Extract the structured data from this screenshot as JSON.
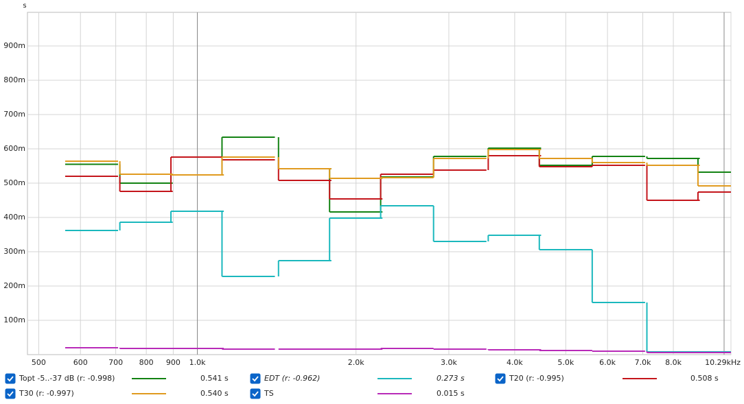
{
  "chart_data": {
    "type": "step",
    "y_unit": "s",
    "x": [
      630,
      800,
      1000,
      1250,
      1600,
      2000,
      2500,
      3150,
      4000,
      5000,
      6300,
      8000,
      10000
    ],
    "series": [
      {
        "name": "Topt -5..-37 dB (r: -0.998)",
        "color": "#128212",
        "summary": "0.541 s",
        "checked": true,
        "italic": false,
        "values": [
          0.555,
          0.5,
          0.524,
          0.634,
          0.542,
          0.416,
          0.518,
          0.578,
          0.602,
          0.552,
          0.578,
          0.572,
          0.532
        ]
      },
      {
        "name": "EDT (r: -0.962)",
        "color": "#1ab8bd",
        "summary": "0.273 s",
        "checked": true,
        "italic": true,
        "values": [
          0.362,
          0.386,
          0.418,
          0.228,
          0.274,
          0.398,
          0.434,
          0.33,
          0.348,
          0.306,
          0.152,
          0.008,
          0.008
        ]
      },
      {
        "name": "T20 (r: -0.995)",
        "color": "#c4141a",
        "summary": "0.508 s",
        "checked": true,
        "italic": false,
        "values": [
          0.52,
          0.476,
          0.576,
          0.568,
          0.508,
          0.454,
          0.526,
          0.538,
          0.58,
          0.548,
          0.552,
          0.45,
          0.474
        ]
      },
      {
        "name": "T30 (r: -0.997)",
        "color": "#e09a1e",
        "summary": "0.540 s",
        "checked": true,
        "italic": false,
        "values": [
          0.564,
          0.526,
          0.524,
          0.576,
          0.542,
          0.514,
          0.516,
          0.572,
          0.598,
          0.572,
          0.56,
          0.552,
          0.492
        ]
      },
      {
        "name": "TS",
        "color": "#b82ab8",
        "summary": "0.015 s",
        "checked": true,
        "italic": false,
        "values": [
          0.02,
          0.018,
          0.018,
          0.016,
          0.016,
          0.016,
          0.018,
          0.016,
          0.014,
          0.012,
          0.01,
          0.006,
          0.006
        ]
      }
    ],
    "xscale": "log",
    "xlim": [
      476,
      10290
    ],
    "xticks": [
      500,
      600,
      700,
      800,
      900,
      {
        "value": 1000,
        "label": "1.0k"
      },
      {
        "value": 2000,
        "label": "2.0k"
      },
      {
        "value": 3000,
        "label": "3.0k"
      },
      {
        "value": 4000,
        "label": "4.0k"
      },
      {
        "value": 5000,
        "label": "5.0k"
      },
      {
        "value": 6000,
        "label": "6.0k"
      },
      {
        "value": 7000,
        "label": "7.0k"
      },
      {
        "value": 8000,
        "label": "8.0k"
      },
      {
        "value": 10290,
        "label": "10.29kHz"
      }
    ],
    "ylim": [
      0,
      0.998
    ],
    "yticks": [
      {
        "value": 0.1,
        "label": "100m"
      },
      {
        "value": 0.2,
        "label": "200m"
      },
      {
        "value": 0.3,
        "label": "300m"
      },
      {
        "value": 0.4,
        "label": "400m"
      },
      {
        "value": 0.5,
        "label": "500m"
      },
      {
        "value": 0.6,
        "label": "600m"
      },
      {
        "value": 0.7,
        "label": "700m"
      },
      {
        "value": 0.8,
        "label": "800m"
      },
      {
        "value": 0.9,
        "label": "900m"
      }
    ],
    "grid": true
  }
}
